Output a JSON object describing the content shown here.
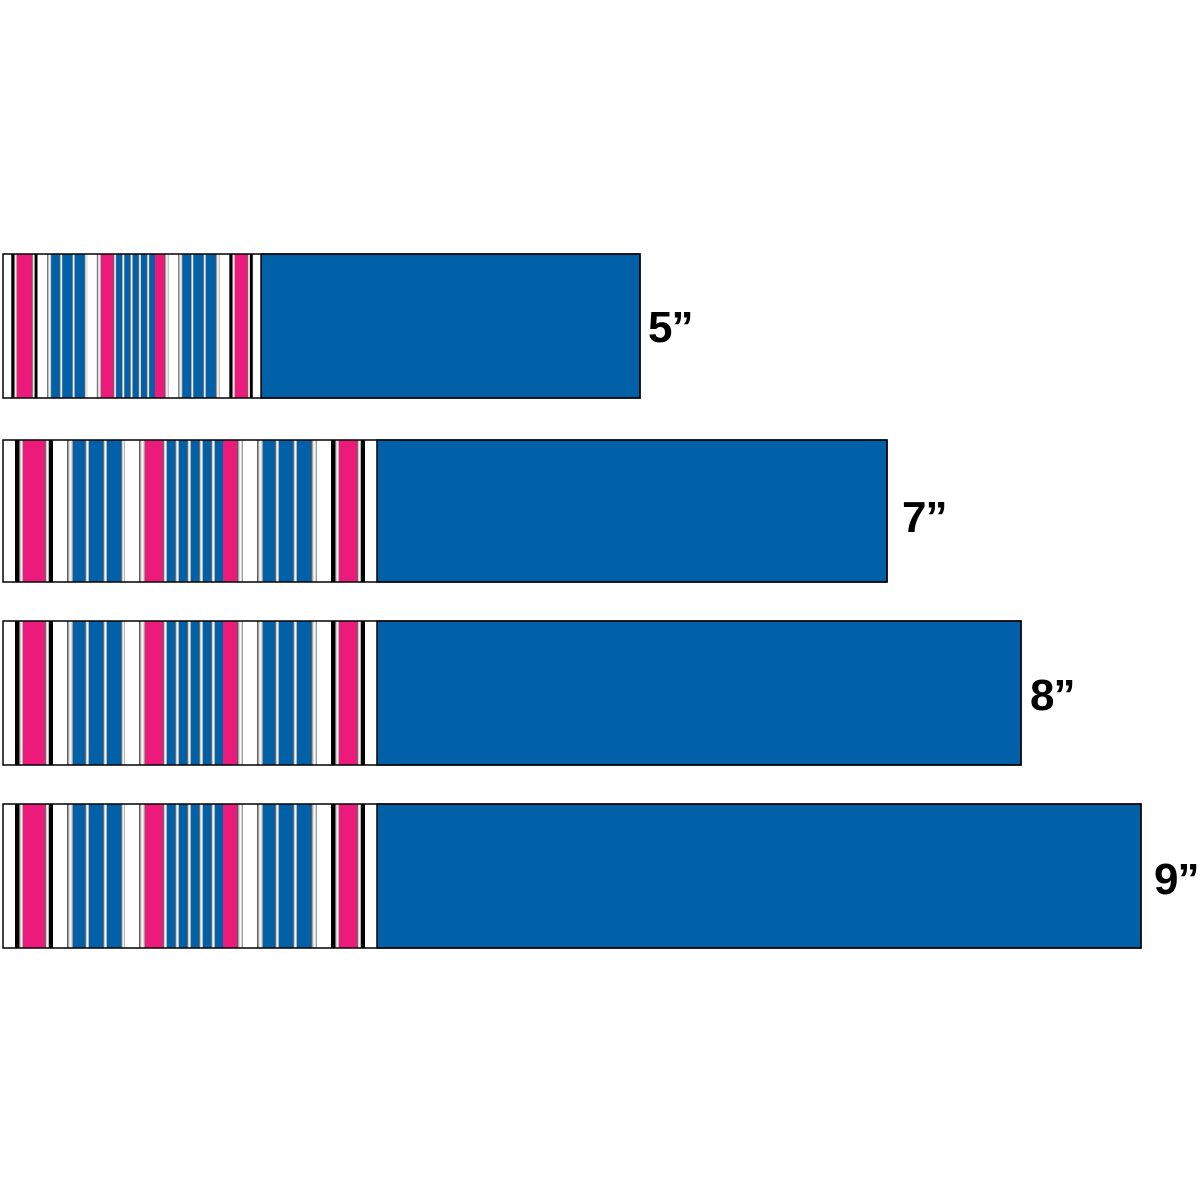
{
  "colors": {
    "blue": "#0060a8",
    "pink": "#ec1a7a",
    "black": "#000000",
    "white": "#ffffff",
    "silver": "#9a9a9a"
  },
  "strips": [
    {
      "size_label": "5”",
      "length_in": 5
    },
    {
      "size_label": "7”",
      "length_in": 7
    },
    {
      "size_label": "8”",
      "length_in": 8
    },
    {
      "size_label": "9”",
      "length_in": 9
    }
  ]
}
